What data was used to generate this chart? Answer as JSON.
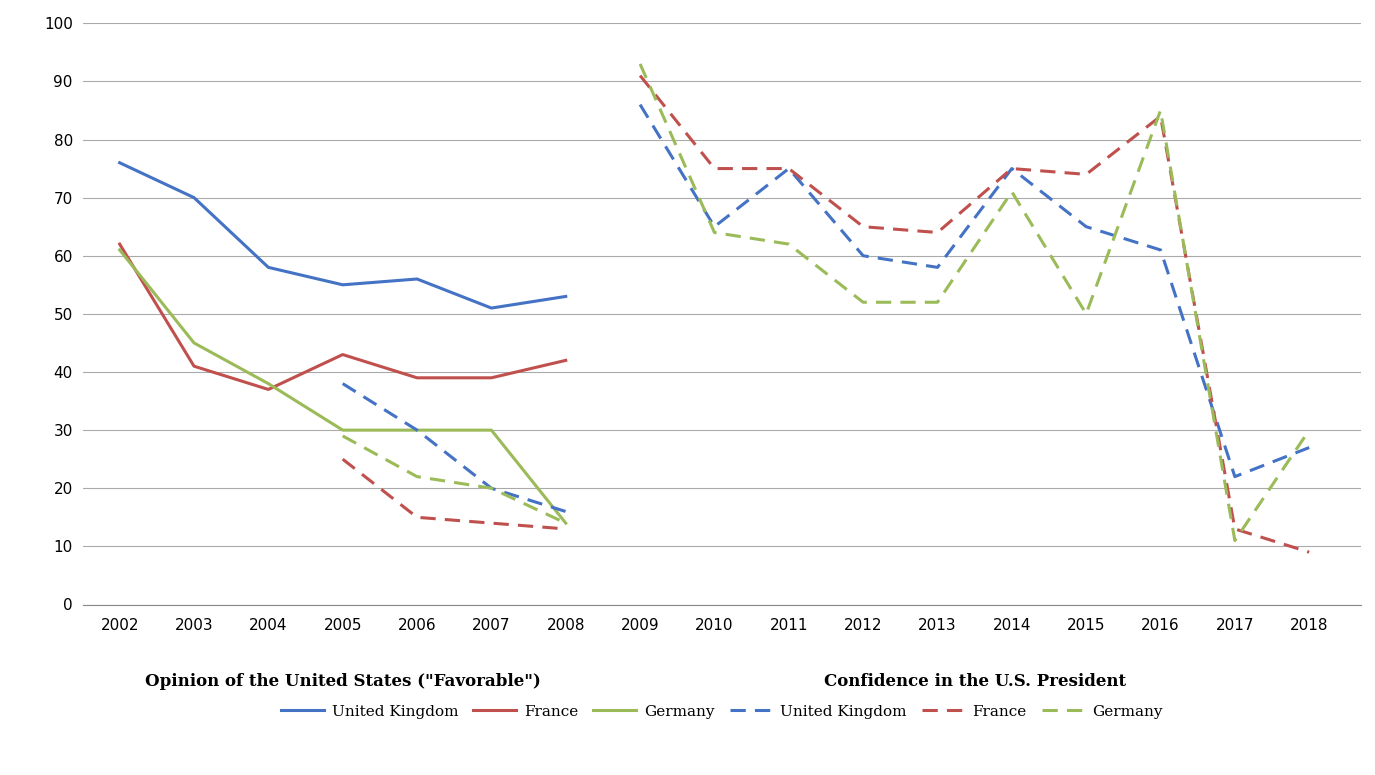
{
  "years_solid": [
    2002,
    2003,
    2004,
    2005,
    2006,
    2007,
    2008
  ],
  "all_years": [
    2002,
    2003,
    2004,
    2005,
    2006,
    2007,
    2008,
    2009,
    2010,
    2011,
    2012,
    2013,
    2014,
    2015,
    2016,
    2017,
    2018
  ],
  "uk_solid": [
    76,
    70,
    58,
    55,
    56,
    51,
    53
  ],
  "france_solid": [
    62,
    41,
    37,
    43,
    39,
    39,
    42
  ],
  "germany_solid": [
    61,
    45,
    38,
    30,
    30,
    30,
    14
  ],
  "years_dashed_early": [
    2005,
    2006,
    2007,
    2008
  ],
  "uk_dashed_early": [
    38,
    30,
    20,
    16
  ],
  "france_dashed_early": [
    25,
    15,
    14,
    13
  ],
  "germany_dashed_early": [
    29,
    22,
    20,
    14
  ],
  "years_dashed_late": [
    2009,
    2010,
    2011,
    2012,
    2013,
    2014,
    2015,
    2016,
    2017,
    2018
  ],
  "uk_dashed_late": [
    86,
    65,
    75,
    60,
    58,
    75,
    65,
    61,
    22,
    27
  ],
  "france_dashed_late": [
    91,
    75,
    75,
    65,
    64,
    75,
    74,
    84,
    13,
    9
  ],
  "germany_dashed_late": [
    93,
    64,
    62,
    52,
    52,
    71,
    50,
    85,
    11,
    30
  ],
  "uk_color": "#4472C4",
  "france_color": "#C0504D",
  "germany_color": "#9BBB59",
  "xlabel_left": "Opinion of the United States (\"Favorable\")",
  "xlabel_right": "Confidence in the U.S. President",
  "ylim": [
    0,
    100
  ],
  "yticks": [
    0,
    10,
    20,
    30,
    40,
    50,
    60,
    70,
    80,
    90,
    100
  ],
  "background_color": "#FFFFFF"
}
